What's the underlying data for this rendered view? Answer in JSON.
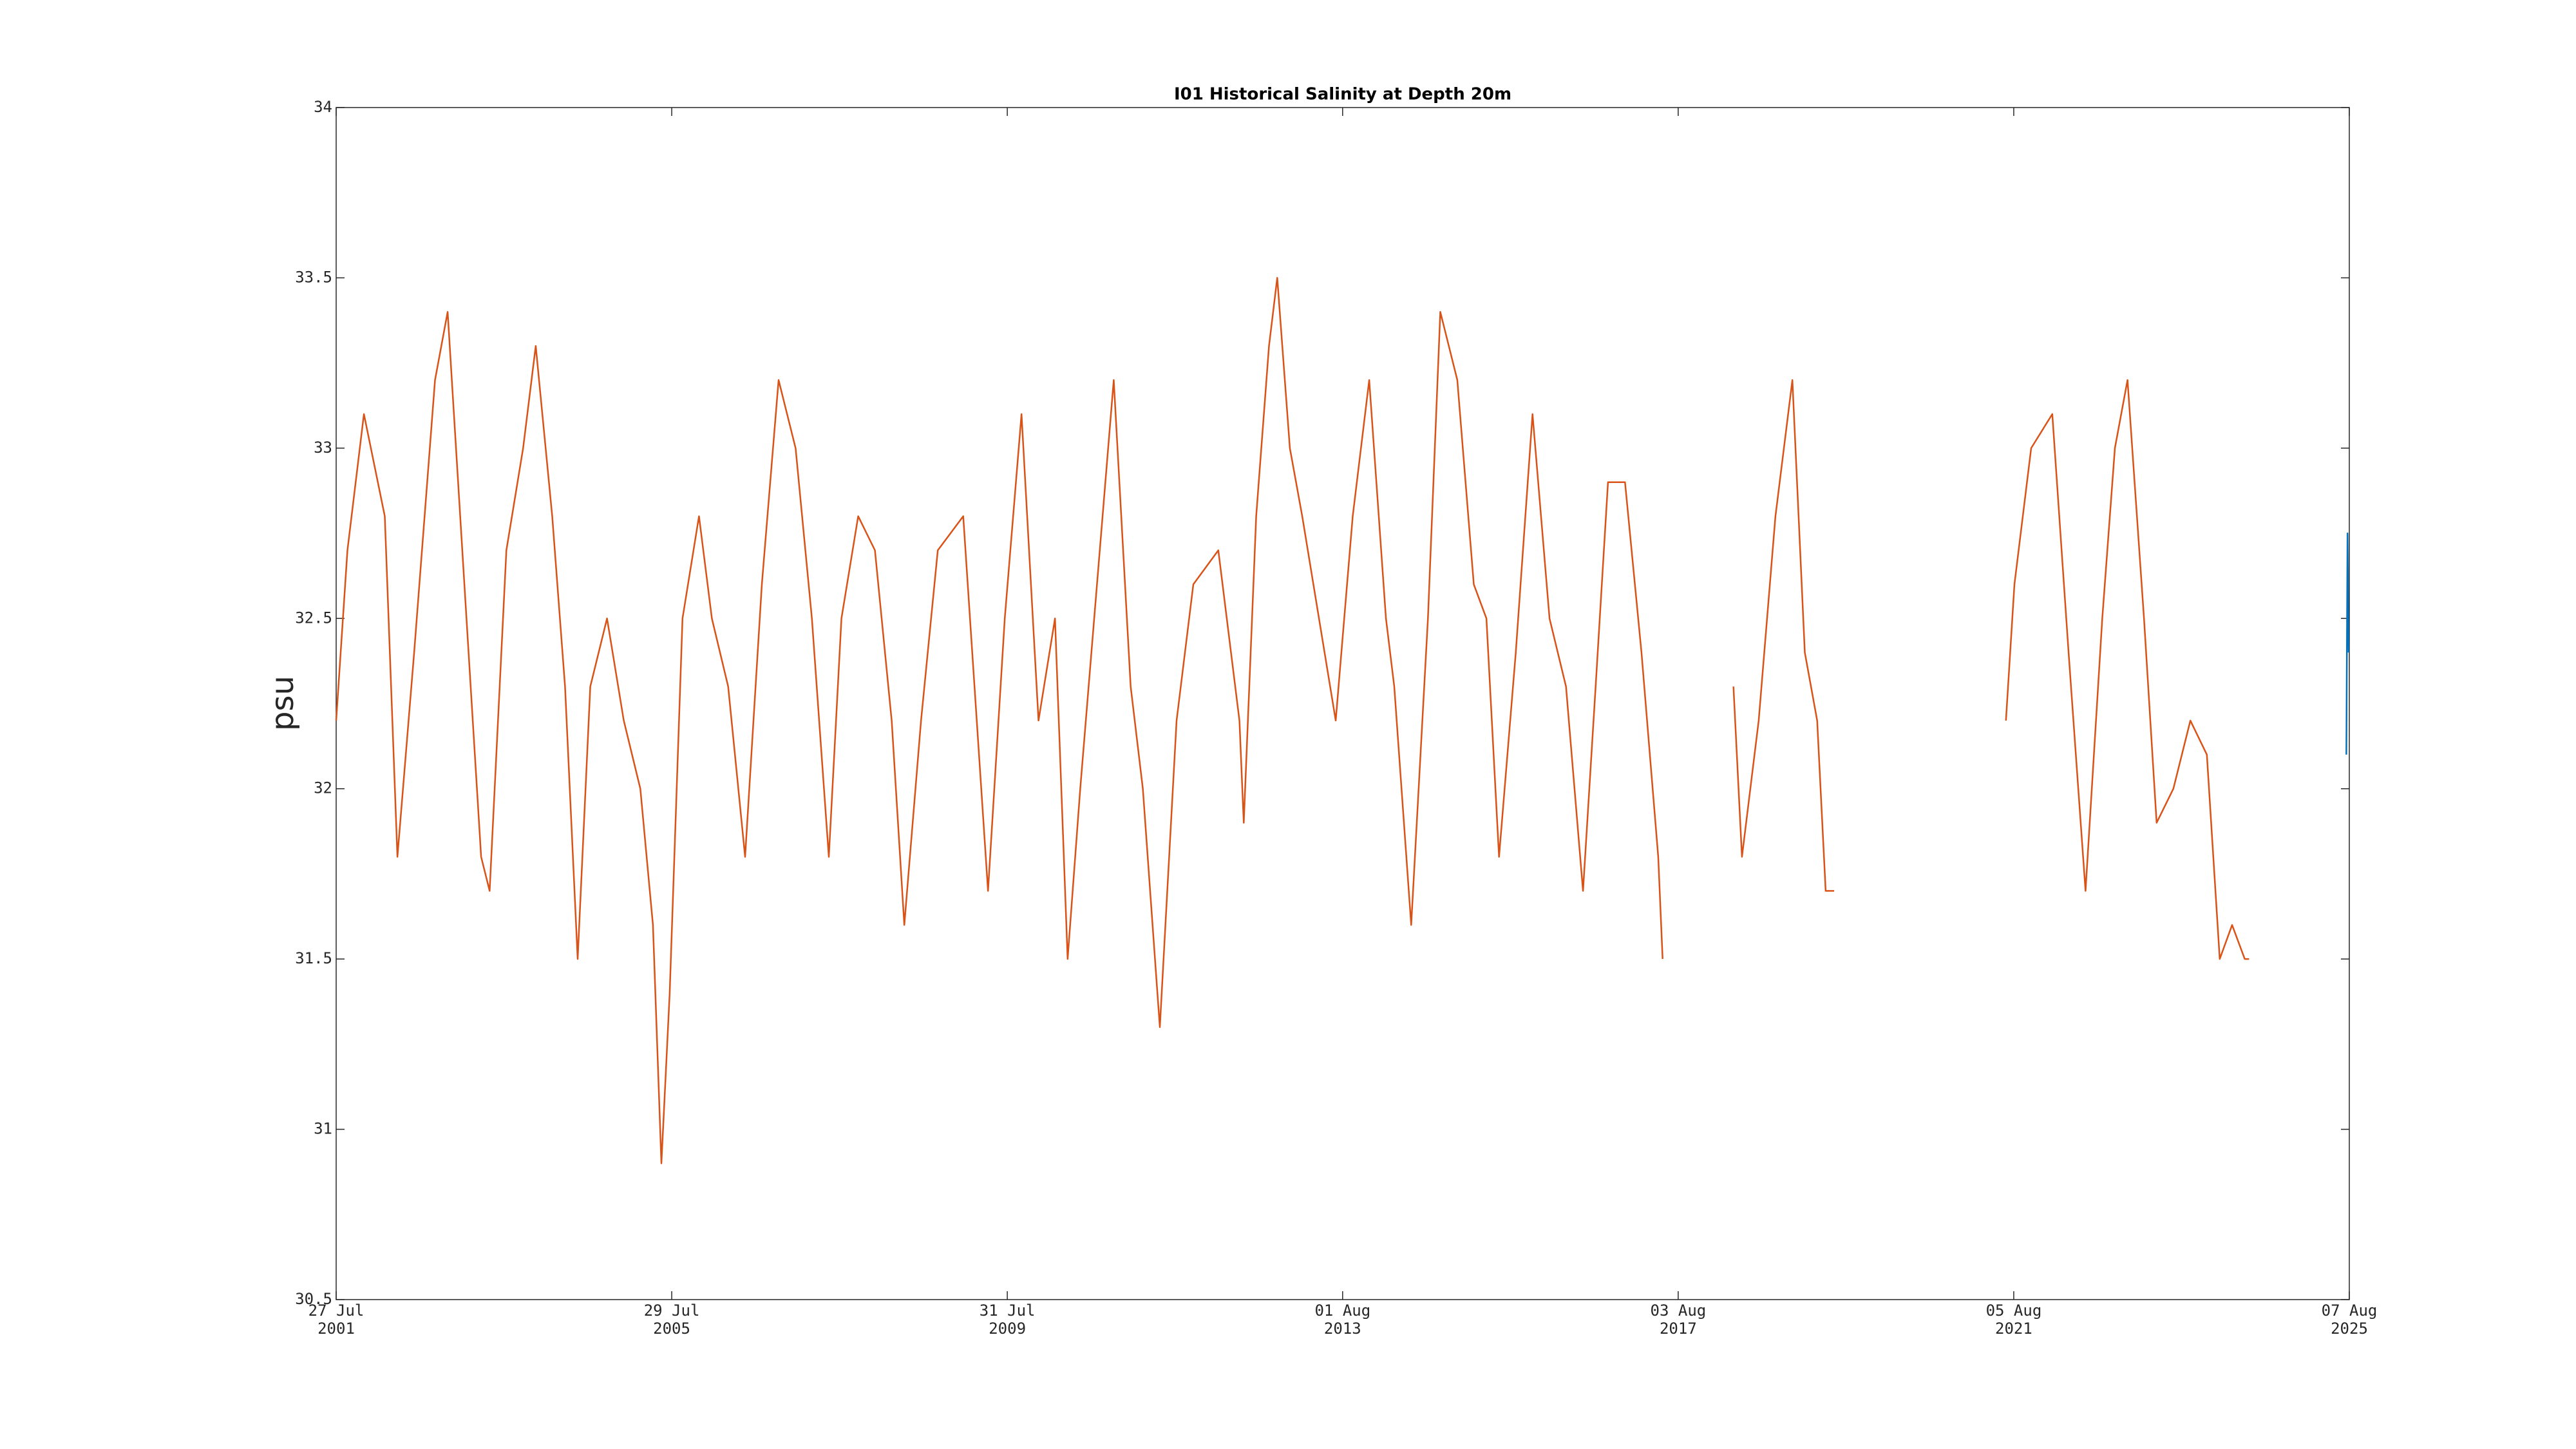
{
  "chart_data": {
    "type": "line",
    "title": "I01 Historical Salinity at Depth 20m",
    "y_label": "psu",
    "xlim": [
      "2001-07-27",
      "2025-08-07"
    ],
    "xticks": [
      {
        "value": "2001-07-27",
        "label": [
          "27 Jul",
          "2001"
        ]
      },
      {
        "value": "2005-07-29",
        "label": [
          "29 Jul",
          "2005"
        ]
      },
      {
        "value": "2009-07-31",
        "label": [
          "31 Jul",
          "2009"
        ]
      },
      {
        "value": "2013-08-01",
        "label": [
          "01 Aug",
          "2013"
        ]
      },
      {
        "value": "2017-08-03",
        "label": [
          "03 Aug",
          "2017"
        ]
      },
      {
        "value": "2021-08-05",
        "label": [
          "05 Aug",
          "2021"
        ]
      },
      {
        "value": "2025-08-07",
        "label": [
          "07 Aug",
          "2025"
        ]
      }
    ],
    "ylim": [
      30.5,
      34
    ],
    "yticks": [
      30.5,
      31,
      31.5,
      32,
      32.5,
      33,
      33.5,
      34
    ],
    "grid": false,
    "series": [
      {
        "color": "#d95319",
        "x": [
          "2001-07-27",
          "2001-09-14",
          "2001-11-25",
          "2002-02-24",
          "2002-04-20",
          "2002-07-02",
          "2002-10-01",
          "2002-11-25",
          "2003-02-06",
          "2003-04-20",
          "2003-05-27",
          "2003-08-08",
          "2003-10-20",
          "2003-12-14",
          "2004-02-24",
          "2004-04-20",
          "2004-06-14",
          "2004-08-08",
          "2004-10-20",
          "2005-01-01",
          "2005-03-14",
          "2005-05-08",
          "2005-06-14",
          "2005-07-20",
          "2005-09-14",
          "2005-11-25",
          "2006-01-20",
          "2006-04-01",
          "2006-06-14",
          "2006-08-26",
          "2006-11-07",
          "2007-01-20",
          "2007-04-01",
          "2007-06-14",
          "2007-08-08",
          "2007-10-20",
          "2008-01-01",
          "2008-03-14",
          "2008-05-08",
          "2008-07-20",
          "2008-10-01",
          "2009-01-20",
          "2009-05-08",
          "2009-07-20",
          "2009-10-01",
          "2009-12-14",
          "2010-02-24",
          "2010-04-20",
          "2010-06-14",
          "2010-08-26",
          "2010-11-07",
          "2011-01-20",
          "2011-03-14",
          "2011-05-27",
          "2011-08-08",
          "2011-10-20",
          "2012-02-06",
          "2012-05-08",
          "2012-05-27",
          "2012-07-20",
          "2012-09-14",
          "2012-10-20",
          "2012-12-14",
          "2013-02-06",
          "2013-07-02",
          "2013-09-14",
          "2013-11-25",
          "2014-02-06",
          "2014-03-14",
          "2014-05-27",
          "2014-08-08",
          "2014-10-01",
          "2014-12-14",
          "2015-02-24",
          "2015-04-20",
          "2015-06-14",
          "2015-08-26",
          "2015-11-07",
          "2016-01-20",
          "2016-04-01",
          "2016-06-14",
          "2016-08-08",
          "2016-10-01",
          "2016-12-14",
          "2017-02-24",
          "2017-05-08",
          "2017-05-27",
          "2017-11-01",
          "2018-04-01",
          "2018-05-08",
          "2018-07-20",
          "2018-10-01",
          "2018-12-14",
          "2019-02-06",
          "2019-04-01",
          "2019-05-08",
          "2019-06-14",
          "2020-06-01",
          "2021-07-02",
          "2021-08-08",
          "2021-10-20",
          "2022-01-20",
          "2022-04-01",
          "2022-06-14",
          "2022-08-26",
          "2022-10-20",
          "2022-12-14",
          "2023-02-24",
          "2023-04-20",
          "2023-07-02",
          "2023-09-14",
          "2023-11-25",
          "2024-01-20",
          "2024-03-14",
          "2024-05-08",
          "2024-05-27"
        ],
        "values": [
          32.2,
          32.7,
          33.1,
          32.8,
          31.8,
          32.4,
          33.2,
          33.4,
          32.6,
          31.8,
          31.7,
          32.7,
          33.0,
          33.3,
          32.8,
          32.3,
          31.5,
          32.3,
          32.5,
          32.2,
          32.0,
          31.6,
          30.9,
          31.4,
          32.5,
          32.8,
          32.5,
          32.3,
          31.8,
          32.6,
          33.2,
          33.0,
          32.5,
          31.8,
          32.5,
          32.8,
          32.7,
          32.2,
          31.6,
          32.2,
          32.7,
          32.8,
          31.7,
          32.5,
          33.1,
          32.2,
          32.5,
          31.5,
          32.0,
          32.6,
          33.2,
          32.3,
          32.0,
          31.3,
          32.2,
          32.6,
          32.7,
          32.2,
          31.9,
          32.8,
          33.3,
          33.5,
          33.0,
          32.8,
          32.2,
          32.8,
          33.2,
          32.5,
          32.3,
          31.6,
          32.5,
          33.4,
          33.2,
          32.6,
          32.5,
          31.8,
          32.4,
          33.1,
          32.5,
          32.3,
          31.7,
          32.3,
          32.9,
          32.9,
          32.4,
          31.8,
          31.5,
          null,
          32.3,
          31.8,
          32.2,
          32.8,
          33.2,
          32.4,
          32.2,
          31.7,
          31.7,
          null,
          32.2,
          32.6,
          33.0,
          33.1,
          32.4,
          31.7,
          32.5,
          33.0,
          33.2,
          32.5,
          31.9,
          32.0,
          32.2,
          32.1,
          31.5,
          31.6,
          31.5,
          31.5
        ]
      },
      {
        "color": "#0072bd",
        "x": [
          "2025-07-25",
          "2025-07-30",
          "2025-08-04"
        ],
        "values": [
          32.1,
          32.75,
          32.4
        ]
      }
    ]
  }
}
